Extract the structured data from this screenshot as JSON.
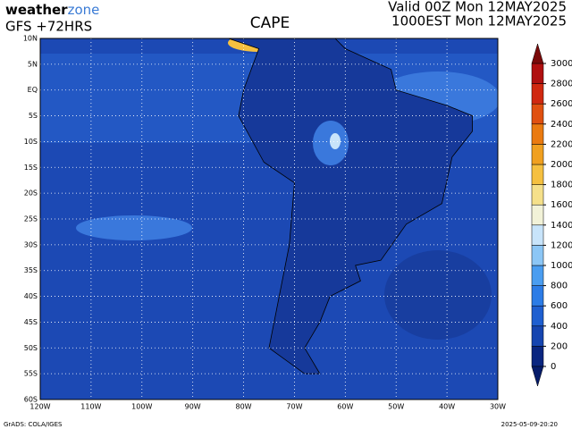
{
  "header": {
    "logo_left": "weather",
    "logo_right": "zone",
    "model": "GFS +72HRS",
    "title": "CAPE",
    "valid_utc": "Valid 00Z Mon 12MAY2025",
    "valid_local": "1000EST Mon 12MAY2025"
  },
  "map": {
    "lat_labels": [
      "10N",
      "5N",
      "EQ",
      "5S",
      "10S",
      "15S",
      "20S",
      "25S",
      "30S",
      "35S",
      "40S",
      "45S",
      "50S",
      "55S",
      "60S"
    ],
    "lon_labels": [
      "120W",
      "110W",
      "100W",
      "90W",
      "80W",
      "70W",
      "60W",
      "50W",
      "40W",
      "30W"
    ]
  },
  "colorbar": {
    "ticks": [
      0,
      200,
      400,
      600,
      800,
      1000,
      1200,
      1400,
      1600,
      1800,
      2000,
      2200,
      2400,
      2600,
      2800,
      3000
    ]
  },
  "footer": {
    "credit": "GrADS: COLA/IGES",
    "timestamp": "2025-05-09-20:20"
  }
}
